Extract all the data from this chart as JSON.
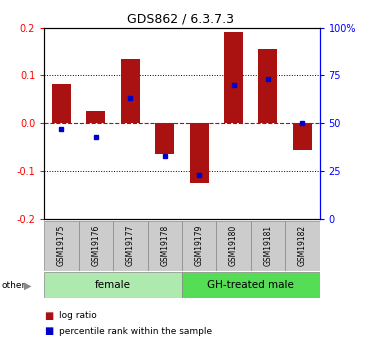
{
  "title": "GDS862 / 6.3.7.3",
  "samples": [
    "GSM19175",
    "GSM19176",
    "GSM19177",
    "GSM19178",
    "GSM19179",
    "GSM19180",
    "GSM19181",
    "GSM19182"
  ],
  "log_ratios": [
    0.083,
    0.025,
    0.135,
    -0.065,
    -0.125,
    0.19,
    0.155,
    -0.055
  ],
  "percentile_ranks": [
    47,
    43,
    63,
    33,
    23,
    70,
    73,
    50
  ],
  "groups": [
    {
      "label": "female",
      "start": 0,
      "end": 4,
      "color": "#aeeaae"
    },
    {
      "label": "GH-treated male",
      "start": 4,
      "end": 8,
      "color": "#55dd55"
    }
  ],
  "ylim": [
    -0.2,
    0.2
  ],
  "right_ylim": [
    0,
    100
  ],
  "yticks_left": [
    -0.2,
    -0.1,
    0.0,
    0.1,
    0.2
  ],
  "yticks_right": [
    0,
    25,
    50,
    75,
    100
  ],
  "bar_color": "#aa1111",
  "dot_color": "#0000cc",
  "zero_line_color": "#cc0000",
  "sample_box_color": "#cccccc",
  "sample_box_edge": "#888888",
  "title_fontsize": 9,
  "tick_fontsize": 7,
  "sample_fontsize": 5.5,
  "group_fontsize": 7.5,
  "legend_fontsize": 6.5
}
